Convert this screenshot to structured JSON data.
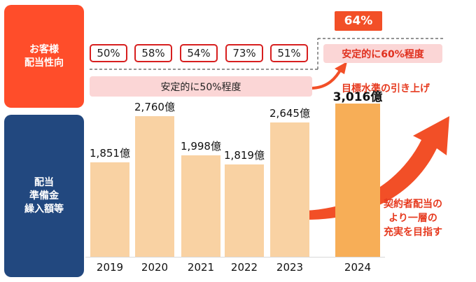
{
  "left_panels": {
    "top_label": "お客様\n配当性向",
    "bottom_label": "配当\n準備金\n繰入額等"
  },
  "payout": {
    "ratios": [
      "50%",
      "58%",
      "54%",
      "73%",
      "51%"
    ],
    "band_current": "安定的に50%程度",
    "band_target": "安定的に60%程度",
    "target_value": "64%",
    "raise_note": "目標水準の引き上げ"
  },
  "note_right": "契約者配当の\nより一層の\n充実を目指す",
  "colors": {
    "accent": "#f24f27",
    "bar": "#f9d2a3",
    "bar_highlight": "#f7ae57",
    "navy": "#22487f"
  },
  "chart_data": {
    "type": "bar",
    "categories": [
      "2019",
      "2020",
      "2021",
      "2022",
      "2023",
      "2024"
    ],
    "values": [
      1851,
      2760,
      1998,
      1819,
      2645,
      3016
    ],
    "labels": [
      "1,851億",
      "2,760億",
      "1,998億",
      "1,819億",
      "2,645億",
      "3,016億"
    ],
    "highlight_index": 5,
    "ylim": [
      0,
      3300
    ]
  }
}
